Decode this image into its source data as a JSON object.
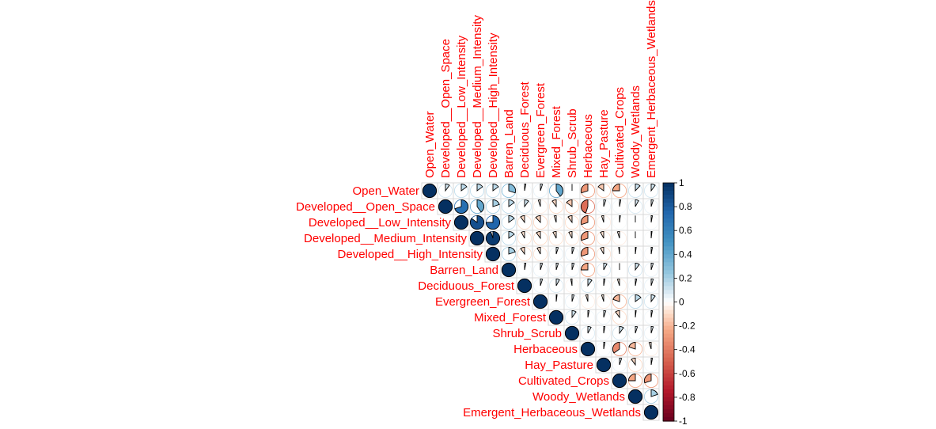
{
  "chart_data": {
    "type": "heatmap",
    "style": "upper-triangle correlation matrix (corrplot, pie method)",
    "variables": [
      "Open_Water",
      "Developed__Open_Space",
      "Developed__Low_Intensity",
      "Developed__Medium_Intensity",
      "Developed__High_Intensity",
      "Barren_Land",
      "Deciduous_Forest",
      "Evergreen_Forest",
      "Mixed_Forest",
      "Shrub_Scrub",
      "Herbaceous",
      "Hay_Pasture",
      "Cultivated_Crops",
      "Woody_Wetlands",
      "Emergent_Herbaceous_Wetlands"
    ],
    "matrix": [
      [
        1,
        0.1,
        0.15,
        0.15,
        0.15,
        0.3,
        0.03,
        0.05,
        0.4,
        0.0,
        -0.3,
        -0.15,
        -0.25,
        0.12,
        0.1
      ],
      [
        null,
        1,
        0.7,
        0.4,
        0.2,
        0.15,
        0.1,
        -0.05,
        -0.1,
        -0.15,
        -0.45,
        0.05,
        0.03,
        0.08,
        0.05
      ],
      [
        null,
        null,
        1,
        0.85,
        0.75,
        0.15,
        -0.1,
        -0.12,
        -0.05,
        -0.1,
        -0.3,
        -0.05,
        0.02,
        0.0,
        0.03
      ],
      [
        null,
        null,
        null,
        1,
        0.95,
        0.15,
        -0.08,
        -0.1,
        -0.08,
        -0.08,
        -0.3,
        -0.08,
        -0.05,
        0.0,
        0.02
      ],
      [
        null,
        null,
        null,
        null,
        1,
        0.2,
        -0.1,
        -0.08,
        0.05,
        0.05,
        -0.3,
        -0.08,
        -0.02,
        0.02,
        0.03
      ],
      [
        null,
        null,
        null,
        null,
        null,
        1,
        0.03,
        0.05,
        0.05,
        0.05,
        -0.25,
        0.08,
        0.0,
        0.1,
        0.05
      ],
      [
        null,
        null,
        null,
        null,
        null,
        null,
        1,
        0.05,
        0.08,
        -0.03,
        0.1,
        0.03,
        -0.05,
        0.03,
        0.05
      ],
      [
        null,
        null,
        null,
        null,
        null,
        null,
        null,
        1,
        0.02,
        0.05,
        -0.05,
        -0.05,
        -0.2,
        0.15,
        0.1
      ],
      [
        null,
        null,
        null,
        null,
        null,
        null,
        null,
        null,
        1,
        0.1,
        0.03,
        0.05,
        -0.1,
        0.02,
        0.03
      ],
      [
        null,
        null,
        null,
        null,
        null,
        null,
        null,
        null,
        null,
        1,
        0.08,
        0.03,
        0.1,
        0.05,
        0.05
      ],
      [
        null,
        null,
        null,
        null,
        null,
        null,
        null,
        null,
        null,
        null,
        1,
        0.03,
        -0.35,
        -0.2,
        -0.05
      ],
      [
        null,
        null,
        null,
        null,
        null,
        null,
        null,
        null,
        null,
        null,
        null,
        1,
        0.05,
        -0.1,
        0.03
      ],
      [
        null,
        null,
        null,
        null,
        null,
        null,
        null,
        null,
        null,
        null,
        null,
        null,
        1,
        -0.25,
        -0.3
      ],
      [
        null,
        null,
        null,
        null,
        null,
        null,
        null,
        null,
        null,
        null,
        null,
        null,
        null,
        1,
        0.2
      ],
      [
        null,
        null,
        null,
        null,
        null,
        null,
        null,
        null,
        null,
        null,
        null,
        null,
        null,
        null,
        1
      ]
    ],
    "colorbar": {
      "ticks": [
        "1",
        "0.8",
        "0.6",
        "0.4",
        "0.2",
        "0",
        "-0.2",
        "-0.4",
        "-0.6",
        "-0.8",
        "-1"
      ],
      "range": [
        -1,
        1
      ],
      "colors": {
        "strong_negative": "#67001F",
        "negative": "#D6604D",
        "neutral": "#FFFFFF",
        "positive": "#4393C3",
        "strong_positive": "#053061"
      }
    },
    "label_color": "#FF0000",
    "grid_color": "#D9D9D9"
  }
}
